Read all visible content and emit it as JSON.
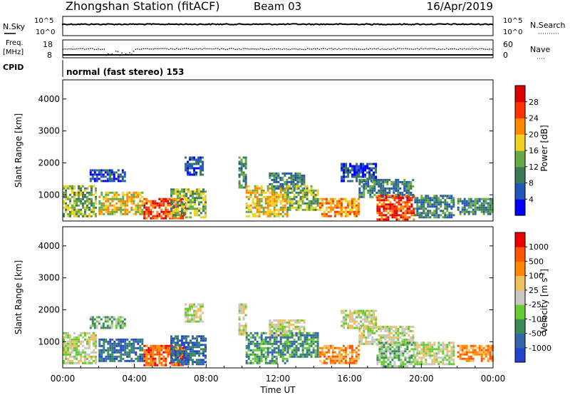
{
  "header": {
    "station": "Zhongshan Station (fitACF)",
    "beam": "Beam 03",
    "date": "16/Apr/2019"
  },
  "top_panel": {
    "left_label": "N.Sky",
    "right_label": "N.Search",
    "left_ticks": [
      "10^5",
      "10^0"
    ],
    "right_ticks": [
      "10^5",
      "10^0"
    ]
  },
  "freq_panel": {
    "left_label_1": "Freq.",
    "left_label_2": "[MHz]",
    "left_ticks": [
      "18",
      "8"
    ],
    "right_label": "Nave",
    "right_ticks": [
      "60",
      "0"
    ]
  },
  "cpid": {
    "label": "CPID",
    "value": "normal (fast stereo) 153"
  },
  "chart_data": [
    {
      "type": "heatmap",
      "name": "power",
      "ylabel": "Slant Range [km]",
      "yticks": [
        "4000",
        "3000",
        "2000",
        "1000"
      ],
      "ytick_values": [
        4000,
        3000,
        2000,
        1000
      ],
      "ylim": [
        180,
        4600
      ],
      "colorbar_label": "Power [dB]",
      "colorbar_ticks": [
        "28",
        "24",
        "20",
        "16",
        "12",
        "8",
        "4"
      ],
      "colorbar_colors": [
        "#0000ff",
        "#2255bb",
        "#3a7a5a",
        "#66aa44",
        "#f0d020",
        "#ff8800",
        "#ff3300",
        "#dd0000"
      ],
      "structure": [
        {
          "x0": 0.0,
          "x1": 1.8,
          "r0": 300,
          "r1": 1300,
          "core": 3
        },
        {
          "x0": 1.5,
          "x1": 3.5,
          "r0": 1400,
          "r1": 1800,
          "core": 1
        },
        {
          "x0": 2.0,
          "x1": 4.5,
          "r0": 400,
          "r1": 1100,
          "core": 4
        },
        {
          "x0": 4.5,
          "x1": 6.8,
          "r0": 250,
          "r1": 900,
          "core": 6
        },
        {
          "x0": 6.8,
          "x1": 7.8,
          "r0": 1600,
          "r1": 2200,
          "core": 1
        },
        {
          "x0": 6.0,
          "x1": 8.0,
          "r0": 300,
          "r1": 1200,
          "core": 3
        },
        {
          "x0": 9.8,
          "x1": 10.2,
          "r0": 1200,
          "r1": 2200,
          "core": 2
        },
        {
          "x0": 10.2,
          "x1": 12.5,
          "r0": 300,
          "r1": 1300,
          "core": 4
        },
        {
          "x0": 11.5,
          "x1": 13.5,
          "r0": 1200,
          "r1": 1700,
          "core": 2
        },
        {
          "x0": 12.5,
          "x1": 14.2,
          "r0": 500,
          "r1": 1300,
          "core": 3
        },
        {
          "x0": 14.3,
          "x1": 16.5,
          "r0": 300,
          "r1": 900,
          "core": 5
        },
        {
          "x0": 15.5,
          "x1": 17.5,
          "r0": 1400,
          "r1": 2000,
          "core": 1
        },
        {
          "x0": 16.5,
          "x1": 19.5,
          "r0": 900,
          "r1": 1500,
          "core": 2
        },
        {
          "x0": 17.5,
          "x1": 19.6,
          "r0": 250,
          "r1": 1000,
          "core": 6
        },
        {
          "x0": 19.6,
          "x1": 21.8,
          "r0": 300,
          "r1": 1000,
          "core": 2
        },
        {
          "x0": 22.0,
          "x1": 24.0,
          "r0": 400,
          "r1": 900,
          "core": 2
        }
      ]
    },
    {
      "type": "heatmap",
      "name": "velocity",
      "ylabel": "Slant Range [km]",
      "yticks": [
        "4000",
        "3000",
        "2000",
        "1000"
      ],
      "ytick_values": [
        4000,
        3000,
        2000,
        1000
      ],
      "ylim": [
        180,
        4600
      ],
      "colorbar_label": "Velocity [m s^-1]",
      "colorbar_ticks": [
        "1000",
        "500",
        "100",
        "25",
        "-25",
        "-100",
        "-500",
        "-1000"
      ],
      "colorbar_colors": [
        "#2244cc",
        "#3366aa",
        "#3a8a5a",
        "#66cc33",
        "#c8c8c0",
        "#f0c060",
        "#ff8800",
        "#ff5500",
        "#ee0000"
      ],
      "structure": [
        {
          "x0": 0.0,
          "x1": 1.8,
          "r0": 300,
          "r1": 1300,
          "core": 4
        },
        {
          "x0": 1.5,
          "x1": 3.5,
          "r0": 1400,
          "r1": 1800,
          "core": 3
        },
        {
          "x0": 2.0,
          "x1": 4.5,
          "r0": 400,
          "r1": 1100,
          "core": 1
        },
        {
          "x0": 4.5,
          "x1": 6.8,
          "r0": 250,
          "r1": 900,
          "core": 7
        },
        {
          "x0": 6.8,
          "x1": 7.8,
          "r0": 1600,
          "r1": 2200,
          "core": 4
        },
        {
          "x0": 6.0,
          "x1": 8.0,
          "r0": 300,
          "r1": 1200,
          "core": 1
        },
        {
          "x0": 9.8,
          "x1": 10.2,
          "r0": 1200,
          "r1": 2200,
          "core": 4
        },
        {
          "x0": 10.2,
          "x1": 12.5,
          "r0": 300,
          "r1": 1300,
          "core": 2
        },
        {
          "x0": 11.5,
          "x1": 13.5,
          "r0": 1200,
          "r1": 1700,
          "core": 4
        },
        {
          "x0": 12.5,
          "x1": 14.2,
          "r0": 500,
          "r1": 1300,
          "core": 2
        },
        {
          "x0": 14.3,
          "x1": 16.5,
          "r0": 300,
          "r1": 900,
          "core": 6
        },
        {
          "x0": 15.5,
          "x1": 17.5,
          "r0": 1400,
          "r1": 2000,
          "core": 4
        },
        {
          "x0": 16.5,
          "x1": 19.5,
          "r0": 900,
          "r1": 1500,
          "core": 4
        },
        {
          "x0": 17.5,
          "x1": 19.6,
          "r0": 250,
          "r1": 1000,
          "core": 3
        },
        {
          "x0": 19.6,
          "x1": 21.8,
          "r0": 300,
          "r1": 1000,
          "core": 4
        },
        {
          "x0": 22.0,
          "x1": 24.0,
          "r0": 400,
          "r1": 900,
          "core": 6
        }
      ]
    }
  ],
  "xaxis": {
    "label": "Time UT",
    "ticks": [
      "00:00",
      "04:00",
      "08:00",
      "12:00",
      "16:00",
      "20:00",
      "00:00"
    ],
    "tick_hours": [
      0,
      4,
      8,
      12,
      16,
      20,
      24
    ]
  }
}
